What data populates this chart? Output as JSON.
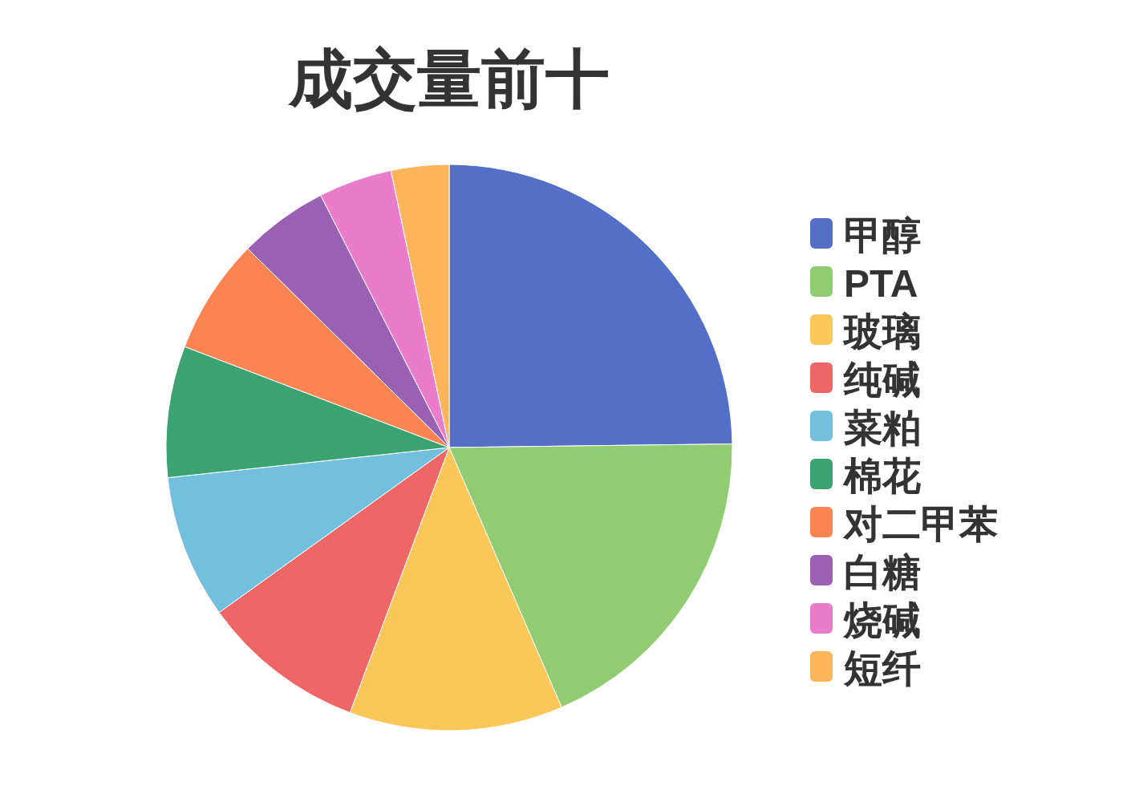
{
  "chart_data": {
    "type": "pie",
    "title": "成交量前十",
    "categories": [
      "甲醇",
      "PTA",
      "玻璃",
      "纯碱",
      "菜粕",
      "棉花",
      "对二甲苯",
      "白糖",
      "烧碱",
      "短纤"
    ],
    "values": [
      24.8,
      18.7,
      12.2,
      9.4,
      8.2,
      7.5,
      6.6,
      5.1,
      4.2,
      3.3
    ],
    "colors": [
      "#5470c6",
      "#91cc75",
      "#fac858",
      "#ee6666",
      "#73c0de",
      "#3ba272",
      "#fc8452",
      "#9a60b4",
      "#ea7ccc",
      "#fdb55c"
    ],
    "legend": "right"
  }
}
